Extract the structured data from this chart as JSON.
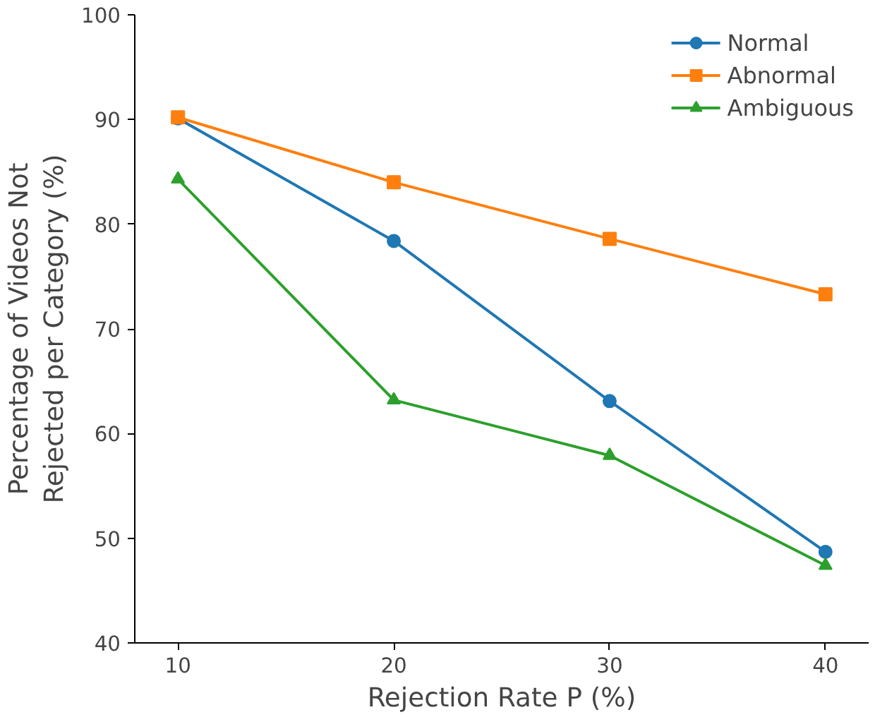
{
  "chart_data": {
    "type": "line",
    "xlabel": "Rejection Rate P (%)",
    "ylabel": "Percentage of Videos Not\nRejected per Category (%)",
    "x": [
      10,
      20,
      30,
      40
    ],
    "xlim": [
      8,
      42
    ],
    "xticks": [
      10,
      20,
      30,
      40
    ],
    "ylim": [
      40,
      100
    ],
    "yticks": [
      40,
      50,
      60,
      70,
      80,
      90,
      100
    ],
    "series": [
      {
        "name": "Normal",
        "color": "#1f77b4",
        "marker": "circle",
        "values": [
          90.1,
          78.4,
          63.1,
          48.7
        ]
      },
      {
        "name": "Abnormal",
        "color": "#ff7f0e",
        "marker": "square",
        "values": [
          90.2,
          84.0,
          78.6,
          73.3
        ]
      },
      {
        "name": "Ambiguous",
        "color": "#2ca02c",
        "marker": "triangle",
        "values": [
          84.3,
          63.2,
          57.9,
          47.4
        ]
      }
    ],
    "legend": "top right",
    "grid": false,
    "line_style": "solid"
  }
}
